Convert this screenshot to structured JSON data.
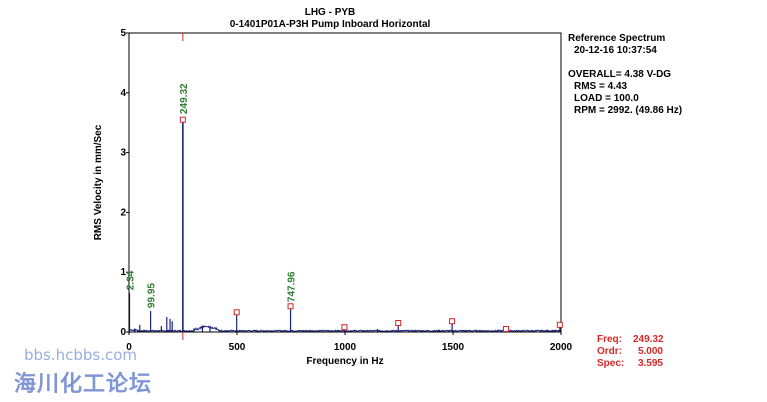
{
  "header": {
    "line1": "LHG  - PYB",
    "line2": "0-1401P01A-P3H   Pump Inboard Horizontal"
  },
  "info": {
    "title": "Reference Spectrum",
    "datetime": "20-12-16   10:37:54",
    "overall": "OVERALL= 4.38 V-DG",
    "rms": "RMS  =  4.43",
    "load": "LOAD = 100.0",
    "rpm": "RPM = 2992. (49.86 Hz)"
  },
  "cursor": {
    "freq_label": "Freq:",
    "freq_value": "249.32",
    "ordr_label": "Ordr:",
    "ordr_value": "5.000",
    "spec_label": "Spec:",
    "spec_value": "3.595"
  },
  "watermark": {
    "url": "bbs.hcbbs.com",
    "name": "海川化工论坛"
  },
  "colors": {
    "spectrum": "#1a237e",
    "peak_label": "#2e7d32",
    "marker": "#d62728"
  },
  "chart_data": {
    "type": "line",
    "title": "",
    "xlabel": "Frequency in Hz",
    "ylabel": "RMS Velocity in mm/Sec",
    "xlim": [
      0,
      2000
    ],
    "ylim": [
      0,
      5
    ],
    "xticks": [
      0,
      500,
      1000,
      1500,
      2000
    ],
    "yticks": [
      0,
      1,
      2,
      3,
      4,
      5
    ],
    "cursor_x": 249.32,
    "peaks": [
      {
        "x": 2.34,
        "y": 0.65,
        "label": "2.34"
      },
      {
        "x": 99.95,
        "y": 0.35,
        "label": "99.95"
      },
      {
        "x": 249.32,
        "y": 3.595,
        "label": "249.32"
      },
      {
        "x": 747.96,
        "y": 0.45,
        "label": "747.96"
      }
    ],
    "harmonic_markers": [
      {
        "x": 249.32,
        "y": 3.55
      },
      {
        "x": 498.6,
        "y": 0.33
      },
      {
        "x": 747.96,
        "y": 0.43
      },
      {
        "x": 997.3,
        "y": 0.08
      },
      {
        "x": 1246.6,
        "y": 0.15
      },
      {
        "x": 1495.9,
        "y": 0.18
      },
      {
        "x": 1745.2,
        "y": 0.05
      },
      {
        "x": 1994.5,
        "y": 0.12
      }
    ],
    "spectrum_lines": [
      {
        "x": 2.34,
        "y": 0.65
      },
      {
        "x": 50,
        "y": 0.12
      },
      {
        "x": 99.95,
        "y": 0.35
      },
      {
        "x": 150,
        "y": 0.1
      },
      {
        "x": 175,
        "y": 0.25
      },
      {
        "x": 190,
        "y": 0.22
      },
      {
        "x": 200,
        "y": 0.18
      },
      {
        "x": 249.32,
        "y": 3.595
      },
      {
        "x": 300,
        "y": 0.06
      },
      {
        "x": 340,
        "y": 0.1
      },
      {
        "x": 375,
        "y": 0.08
      },
      {
        "x": 498.6,
        "y": 0.33
      },
      {
        "x": 747.96,
        "y": 0.45
      },
      {
        "x": 997.3,
        "y": 0.06
      },
      {
        "x": 1150,
        "y": 0.05
      },
      {
        "x": 1246.6,
        "y": 0.14
      },
      {
        "x": 1495.9,
        "y": 0.17
      },
      {
        "x": 1745.2,
        "y": 0.04
      },
      {
        "x": 1994.5,
        "y": 0.12
      }
    ]
  }
}
